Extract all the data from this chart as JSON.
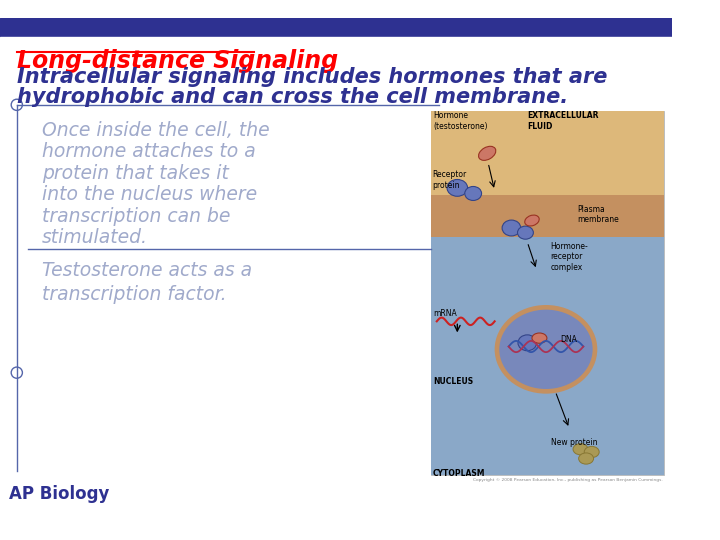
{
  "bg_color": "#ffffff",
  "top_bar_color": "#2e3191",
  "title_text": "Long-distance Signaling",
  "title_color": "#ff0000",
  "subtitle_line1": "Intracellular signaling includes hormones that are",
  "subtitle_line2": "hydrophobic and can cross the cell membrane.",
  "subtitle_color": "#2e3191",
  "body_text1_lines": [
    "Once inside the cell, the",
    "hormone attaches to a",
    "protein that takes it",
    "into the nucleus where",
    "transcription can be",
    "stimulated."
  ],
  "body_text2_lines": [
    "Testosterone acts as a",
    "transcription factor."
  ],
  "body_color": "#a0aacb",
  "footer_text": "AP Biology",
  "footer_color": "#2e3191",
  "divider_color": "#5566aa",
  "left_border_color": "#5566aa",
  "circle_color": "#5566aa",
  "copyright": "Copyright © 2008 Pearson Education, Inc., publishing as Pearson Benjamin Cummings."
}
